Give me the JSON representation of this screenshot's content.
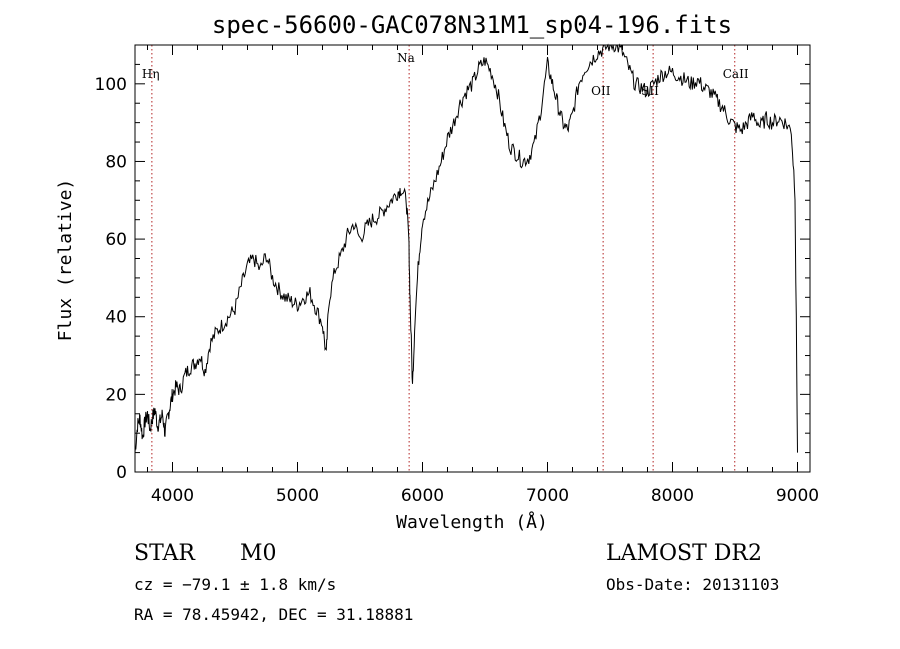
{
  "chart_data": {
    "type": "line",
    "title": "spec-56600-GAC078N31M1_sp04-196.fits",
    "xlabel": "Wavelength (Å)",
    "ylabel": "Flux (relative)",
    "xlim": [
      3700,
      9100
    ],
    "ylim": [
      0,
      110
    ],
    "xticks": [
      4000,
      5000,
      6000,
      7000,
      8000,
      9000
    ],
    "yticks": [
      0,
      20,
      40,
      60,
      80,
      100
    ],
    "grid": false,
    "line_color": "#000000",
    "marker_color": "#b22222",
    "spectral_lines": [
      {
        "label": "Hη",
        "x": 3835
      },
      {
        "label": "Na",
        "x": 5893
      },
      {
        "label": "OII",
        "x": 7445
      },
      {
        "label": "SII",
        "x": 7845
      },
      {
        "label": "CaII",
        "x": 8498
      }
    ],
    "series": [
      {
        "x": [
          3700,
          3720,
          3740,
          3760,
          3780,
          3800,
          3820,
          3840,
          3860,
          3880,
          3900,
          3920,
          3940,
          3960,
          3980,
          4000,
          4030,
          4060,
          4100,
          4140,
          4180,
          4220,
          4260,
          4300,
          4350,
          4400,
          4450,
          4500,
          4550,
          4600,
          4650,
          4700,
          4750,
          4800,
          4850,
          4900,
          4950,
          5000,
          5050,
          5100,
          5150,
          5200,
          5230,
          5250,
          5300,
          5350,
          5400,
          5450,
          5500,
          5550,
          5600,
          5650,
          5700,
          5750,
          5800,
          5830,
          5870,
          5890,
          5900,
          5920,
          5940,
          5970,
          6000,
          6050,
          6100,
          6150,
          6200,
          6250,
          6300,
          6350,
          6400,
          6450,
          6500,
          6550,
          6600,
          6650,
          6700,
          6750,
          6800,
          6850,
          6900,
          6950,
          7000,
          7040,
          7080,
          7120,
          7160,
          7200,
          7250,
          7300,
          7350,
          7400,
          7450,
          7500,
          7550,
          7600,
          7650,
          7700,
          7750,
          7800,
          7850,
          7900,
          7950,
          8000,
          8050,
          8100,
          8150,
          8200,
          8250,
          8300,
          8350,
          8400,
          8450,
          8500,
          8550,
          8600,
          8650,
          8700,
          8750,
          8800,
          8850,
          8900,
          8950,
          8980,
          9000
        ],
        "values": [
          5,
          12,
          14,
          9,
          13,
          15,
          11,
          14,
          16,
          12,
          13,
          15,
          10,
          14,
          17,
          20,
          22,
          21,
          25,
          27,
          28,
          30,
          26,
          33,
          36,
          38,
          40,
          42,
          48,
          53,
          55,
          52,
          56,
          50,
          47,
          45,
          44,
          43,
          45,
          46,
          42,
          38,
          30,
          44,
          52,
          56,
          61,
          64,
          60,
          63,
          65,
          66,
          68,
          70,
          72,
          73,
          70,
          60,
          45,
          22,
          40,
          55,
          65,
          70,
          75,
          80,
          86,
          90,
          95,
          98,
          100,
          104,
          106,
          103,
          98,
          90,
          84,
          82,
          80,
          81,
          85,
          94,
          105,
          100,
          95,
          90,
          88,
          92,
          100,
          104,
          106,
          108,
          109,
          110,
          110,
          108,
          104,
          100,
          99,
          98,
          100,
          102,
          103,
          103,
          102,
          101,
          100,
          101,
          99,
          98,
          96,
          94,
          91,
          89,
          88,
          90,
          92,
          89,
          91,
          90,
          91,
          90,
          88,
          72,
          5
        ]
      }
    ]
  },
  "info": {
    "object_class": "STAR",
    "subclass": "M0",
    "redshift": "cz = −79.1 ± 1.8 km/s",
    "coords": "RA =  78.45942, DEC =  31.18881",
    "survey": "LAMOST DR2",
    "obs_date": "Obs-Date: 20131103"
  }
}
